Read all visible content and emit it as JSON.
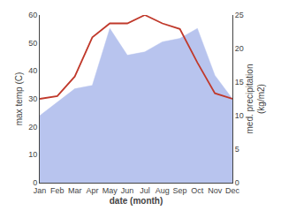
{
  "chart_data": {
    "type": "line",
    "categories": [
      "Jan",
      "Feb",
      "Mar",
      "Apr",
      "May",
      "Jun",
      "Jul",
      "Aug",
      "Sep",
      "Oct",
      "Nov",
      "Dec"
    ],
    "series": [
      {
        "type": "area",
        "axis": "y2",
        "color": "#b8c4ee",
        "values": [
          10,
          12,
          14,
          14.5,
          23,
          19,
          19.5,
          21,
          21.5,
          23,
          16,
          12.5
        ]
      },
      {
        "type": "line",
        "color": "#c0392b",
        "values": [
          30,
          31,
          38,
          52,
          57,
          57,
          60,
          57,
          55,
          43,
          32,
          30
        ]
      }
    ],
    "xlabel": "date (month)",
    "ylabel": "max temp (C)",
    "y2label": "med. precipitation\n(kg/m2)",
    "ylim": [
      0,
      60
    ],
    "yticks": [
      0,
      10,
      20,
      30,
      40,
      50,
      60
    ],
    "y2lim": [
      0,
      25
    ],
    "y2ticks": [
      0,
      5,
      10,
      15,
      20,
      25
    ],
    "grid": false
  }
}
